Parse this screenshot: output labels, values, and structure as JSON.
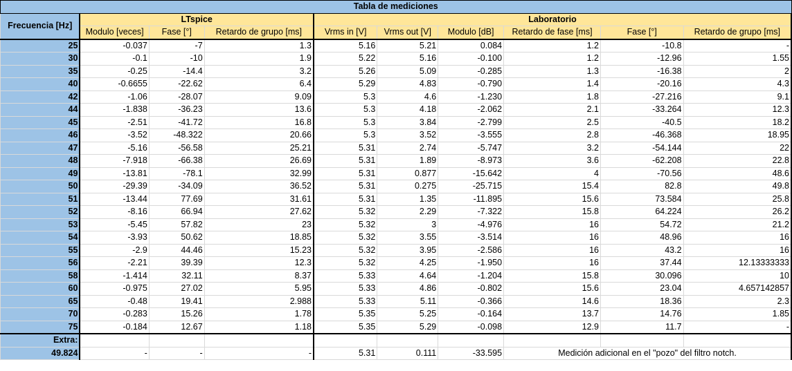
{
  "title": "Tabla de mediciones",
  "freq_header": "Frecuencia [Hz]",
  "groups": {
    "ltspice": "LTspice",
    "lab": "Laboratorio"
  },
  "columns": [
    "Modulo [veces]",
    "Fase [°]",
    "Retardo de grupo [ms]",
    "Vrms in [V]",
    "Vrms out [V]",
    "Modulo [dB]",
    "Retardo de fase [ms]",
    "Fase [°]",
    "Retardo de grupo [ms]"
  ],
  "rows": [
    [
      "25",
      "-0.037",
      "-7",
      "1.3",
      "5.16",
      "5.21",
      "0.084",
      "1.2",
      "-10.8",
      "-"
    ],
    [
      "30",
      "-0.1",
      "-10",
      "1.9",
      "5.22",
      "5.16",
      "-0.100",
      "1.2",
      "-12.96",
      "1.55"
    ],
    [
      "35",
      "-0.25",
      "-14.4",
      "3.2",
      "5.26",
      "5.09",
      "-0.285",
      "1.3",
      "-16.38",
      "2"
    ],
    [
      "40",
      "-0.6655",
      "-22.62",
      "6.4",
      "5.29",
      "4.83",
      "-0.790",
      "1.4",
      "-20.16",
      "4.3"
    ],
    [
      "42",
      "-1.06",
      "-28.07",
      "9.09",
      "5.3",
      "4.6",
      "-1.230",
      "1.8",
      "-27.216",
      "9.1"
    ],
    [
      "44",
      "-1.838",
      "-36.23",
      "13.6",
      "5.3",
      "4.18",
      "-2.062",
      "2.1",
      "-33.264",
      "12.3"
    ],
    [
      "45",
      "-2.51",
      "-41.72",
      "16.8",
      "5.3",
      "3.84",
      "-2.799",
      "2.5",
      "-40.5",
      "18.2"
    ],
    [
      "46",
      "-3.52",
      "-48.322",
      "20.66",
      "5.3",
      "3.52",
      "-3.555",
      "2.8",
      "-46.368",
      "18.95"
    ],
    [
      "47",
      "-5.16",
      "-56.58",
      "25.21",
      "5.31",
      "2.74",
      "-5.747",
      "3.2",
      "-54.144",
      "22"
    ],
    [
      "48",
      "-7.918",
      "-66.38",
      "26.69",
      "5.31",
      "1.89",
      "-8.973",
      "3.6",
      "-62.208",
      "22.8"
    ],
    [
      "49",
      "-13.81",
      "-78.1",
      "32.99",
      "5.31",
      "0.877",
      "-15.642",
      "4",
      "-70.56",
      "48.6"
    ],
    [
      "50",
      "-29.39",
      "-34.09",
      "36.52",
      "5.31",
      "0.275",
      "-25.715",
      "15.4",
      "82.8",
      "49.8"
    ],
    [
      "51",
      "-13.44",
      "77.69",
      "31.61",
      "5.31",
      "1.35",
      "-11.895",
      "15.6",
      "73.584",
      "25.8"
    ],
    [
      "52",
      "-8.16",
      "66.94",
      "27.62",
      "5.32",
      "2.29",
      "-7.322",
      "15.8",
      "64.224",
      "26.2"
    ],
    [
      "53",
      "-5.45",
      "57.82",
      "23",
      "5.32",
      "3",
      "-4.976",
      "16",
      "54.72",
      "21.2"
    ],
    [
      "54",
      "-3.93",
      "50.62",
      "18.85",
      "5.32",
      "3.55",
      "-3.514",
      "16",
      "48.96",
      "16"
    ],
    [
      "55",
      "-2.9",
      "44.46",
      "15.23",
      "5.32",
      "3.95",
      "-2.586",
      "16",
      "43.2",
      "16"
    ],
    [
      "56",
      "-2.21",
      "39.39",
      "12.3",
      "5.32",
      "4.25",
      "-1.950",
      "16",
      "37.44",
      "12.13333333"
    ],
    [
      "58",
      "-1.414",
      "32.11",
      "8.37",
      "5.33",
      "4.64",
      "-1.204",
      "15.8",
      "30.096",
      "10"
    ],
    [
      "60",
      "-0.975",
      "27.02",
      "5.95",
      "5.33",
      "4.86",
      "-0.802",
      "15.6",
      "23.04",
      "4.657142857"
    ],
    [
      "65",
      "-0.48",
      "19.41",
      "2.988",
      "5.33",
      "5.11",
      "-0.366",
      "14.6",
      "18.36",
      "2.3"
    ],
    [
      "70",
      "-0.283",
      "15.26",
      "1.78",
      "5.35",
      "5.25",
      "-0.164",
      "13.7",
      "14.76",
      "1.85"
    ],
    [
      "75",
      "-0.184",
      "12.67",
      "1.18",
      "5.35",
      "5.29",
      "-0.098",
      "12.9",
      "11.7",
      "-"
    ]
  ],
  "extra_label": "Extra:",
  "extra_row": [
    "49.824",
    "-",
    "-",
    "-",
    "5.31",
    "0.111",
    "-33.595"
  ],
  "extra_note": "Medición adicional en el \"pozo\" del filtro notch."
}
